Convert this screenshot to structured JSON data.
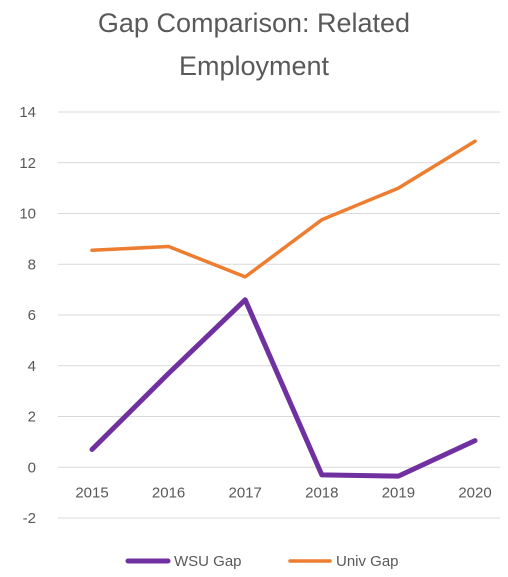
{
  "chart_data": {
    "type": "line",
    "title_lines": [
      "Gap Comparison: Related",
      "Employment"
    ],
    "xlabel": "",
    "ylabel": "",
    "categories": [
      "2015",
      "2016",
      "2017",
      "2018",
      "2019",
      "2020"
    ],
    "ylim": [
      -2,
      14
    ],
    "yticks": [
      -2,
      0,
      2,
      4,
      6,
      8,
      10,
      12,
      14
    ],
    "grid": true,
    "legend_position": "bottom",
    "series": [
      {
        "name": "WSU Gap",
        "color": "#7030a0",
        "values": [
          0.7,
          3.7,
          6.6,
          -0.3,
          -0.35,
          1.05
        ]
      },
      {
        "name": "Univ Gap",
        "color": "#ed7d31",
        "values": [
          8.55,
          8.7,
          7.5,
          9.75,
          11.0,
          12.85
        ]
      }
    ]
  }
}
